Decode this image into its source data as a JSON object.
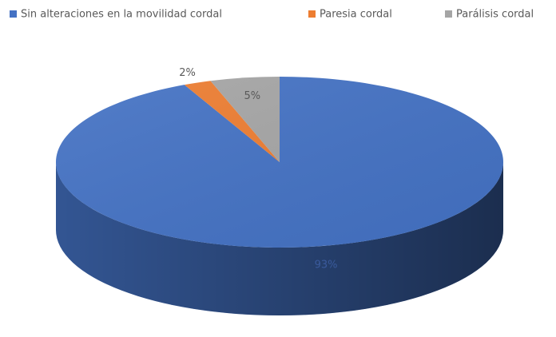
{
  "chart_data": {
    "type": "pie",
    "categories": [
      "Sin alteraciones en la movilidad cordal",
      "Paresia cordal",
      "Parálisis cordal"
    ],
    "values": [
      93,
      2,
      5
    ],
    "value_labels": [
      "93%",
      "2%",
      "5%"
    ],
    "colors": [
      "#4472c4",
      "#ed7d31",
      "#a5a5a5"
    ]
  }
}
